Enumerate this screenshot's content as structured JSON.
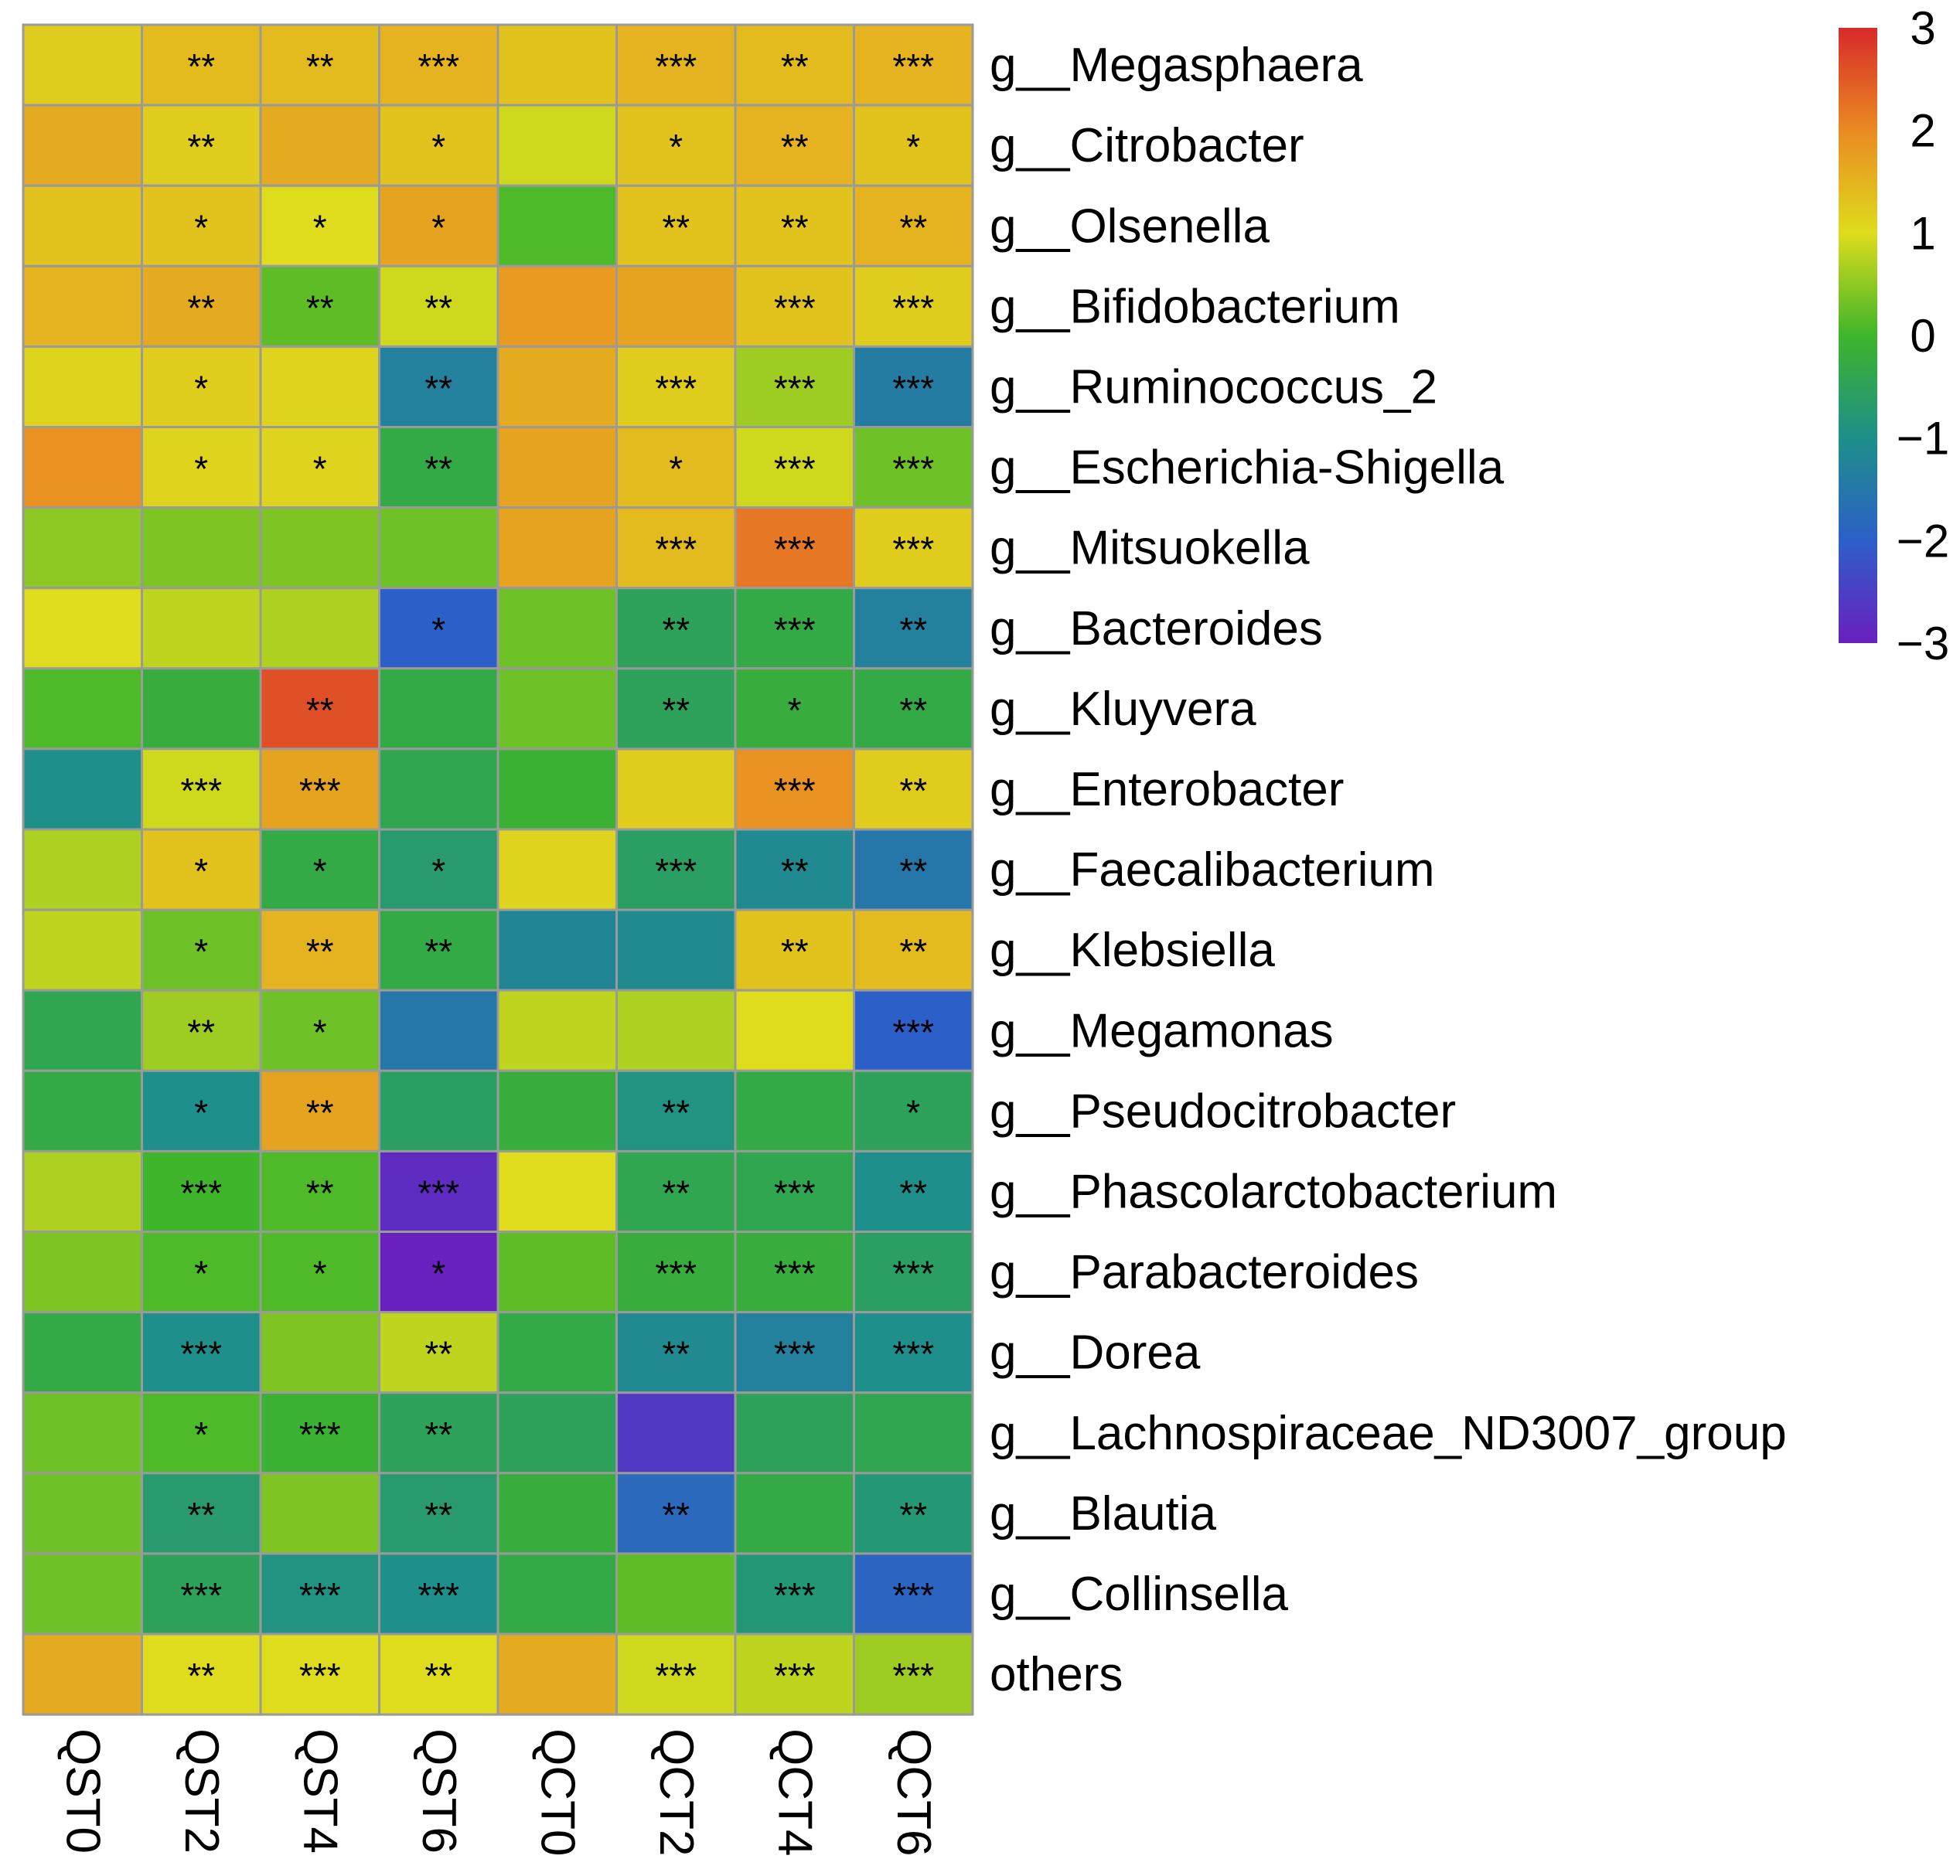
{
  "chart_data": {
    "type": "heatmap",
    "title": "",
    "columns": [
      "QST0",
      "QST2",
      "QST4",
      "QST6",
      "QCT0",
      "QCT2",
      "QCT4",
      "QCT6"
    ],
    "rows": [
      "g__Megasphaera",
      "g__Citrobacter",
      "g__Olsenella",
      "g__Bifidobacterium",
      "g__Ruminococcus_2",
      "g__Escherichia-Shigella",
      "g__Mitsuokella",
      "g__Bacteroides",
      "g__Kluyvera",
      "g__Enterobacter",
      "g__Faecalibacterium",
      "g__Klebsiella",
      "g__Megamonas",
      "g__Pseudocitrobacter",
      "g__Phascolarctobacterium",
      "g__Parabacteroides",
      "g__Dorea",
      "g__Lachnospiraceae_ND3007_group",
      "g__Blautia",
      "g__Collinsella",
      "others"
    ],
    "values": [
      [
        1.2,
        1.4,
        1.4,
        1.5,
        1.3,
        1.5,
        1.4,
        1.5
      ],
      [
        1.6,
        1.2,
        1.6,
        1.3,
        0.9,
        1.3,
        1.5,
        1.3
      ],
      [
        1.3,
        1.3,
        1.0,
        1.7,
        0.1,
        1.3,
        1.3,
        1.5
      ],
      [
        1.5,
        1.6,
        0.2,
        0.9,
        1.8,
        1.7,
        1.3,
        1.2
      ],
      [
        1.1,
        1.2,
        1.1,
        -1.3,
        1.6,
        1.2,
        0.6,
        -1.4
      ],
      [
        1.9,
        1.1,
        1.1,
        -0.3,
        1.7,
        1.4,
        0.9,
        0.3
      ],
      [
        0.5,
        0.4,
        0.4,
        0.3,
        1.7,
        1.4,
        2.2,
        1.2
      ],
      [
        1.0,
        0.8,
        0.7,
        -2.0,
        0.3,
        -0.5,
        -0.3,
        -1.3
      ],
      [
        0.1,
        -0.2,
        2.6,
        -0.3,
        0.3,
        -0.5,
        -0.2,
        -0.3
      ],
      [
        -1.0,
        0.9,
        1.7,
        -0.4,
        -0.1,
        1.2,
        1.9,
        1.2
      ],
      [
        0.7,
        1.3,
        -0.3,
        -0.7,
        1.1,
        -0.6,
        -1.1,
        -1.5
      ],
      [
        0.8,
        0.3,
        1.5,
        -0.3,
        -1.2,
        -1.1,
        1.3,
        1.4
      ],
      [
        -0.4,
        0.6,
        0.3,
        -1.5,
        0.8,
        0.7,
        1.0,
        -2.0
      ],
      [
        -0.3,
        -1.0,
        1.7,
        -0.6,
        -0.2,
        -0.9,
        -0.3,
        -0.5
      ],
      [
        0.7,
        0.0,
        0.1,
        -2.8,
        1.0,
        -0.4,
        -0.4,
        -1.0
      ],
      [
        0.4,
        0.1,
        0.1,
        -3.0,
        0.2,
        -0.2,
        -0.2,
        -0.6
      ],
      [
        -0.3,
        -1.0,
        0.4,
        0.8,
        -0.3,
        -1.1,
        -1.3,
        -1.0
      ],
      [
        0.3,
        0.1,
        -0.1,
        -0.5,
        -0.5,
        -2.6,
        -0.5,
        -0.4
      ],
      [
        0.3,
        -0.7,
        0.4,
        -0.7,
        -0.2,
        -1.8,
        -0.3,
        -0.8
      ],
      [
        0.3,
        -0.5,
        -0.9,
        -1.0,
        -0.3,
        0.2,
        -0.8,
        -1.9
      ],
      [
        1.6,
        1.0,
        1.0,
        1.0,
        1.6,
        0.9,
        0.8,
        0.6
      ]
    ],
    "significance": [
      [
        "",
        "**",
        "**",
        "***",
        "",
        "***",
        "**",
        "***"
      ],
      [
        "",
        "**",
        "",
        "*",
        "",
        "*",
        "**",
        "*"
      ],
      [
        "",
        "*",
        "*",
        "*",
        "",
        "**",
        "**",
        "**"
      ],
      [
        "",
        "**",
        "**",
        "**",
        "",
        "",
        "***",
        "***"
      ],
      [
        "",
        "*",
        "",
        "**",
        "",
        "***",
        "***",
        "***"
      ],
      [
        "",
        "*",
        "*",
        "**",
        "",
        "*",
        "***",
        "***"
      ],
      [
        "",
        "",
        "",
        "",
        "",
        "***",
        "***",
        "***"
      ],
      [
        "",
        "",
        "",
        "*",
        "",
        "**",
        "***",
        "**"
      ],
      [
        "",
        "",
        "**",
        "",
        "",
        "**",
        "*",
        "**"
      ],
      [
        "",
        "***",
        "***",
        "",
        "",
        "",
        "***",
        "**"
      ],
      [
        "",
        "*",
        "*",
        "*",
        "",
        "***",
        "**",
        "**"
      ],
      [
        "",
        "*",
        "**",
        "**",
        "",
        "",
        "**",
        "**"
      ],
      [
        "",
        "**",
        "*",
        "",
        "",
        "",
        "",
        "***"
      ],
      [
        "",
        "*",
        "**",
        "",
        "",
        "**",
        "",
        "*"
      ],
      [
        "",
        "***",
        "**",
        "***",
        "",
        "**",
        "***",
        "**"
      ],
      [
        "",
        "*",
        "*",
        "*",
        "",
        "***",
        "***",
        "***"
      ],
      [
        "",
        "***",
        "",
        "**",
        "",
        "**",
        "***",
        "***"
      ],
      [
        "",
        "*",
        "***",
        "**",
        "",
        "",
        "",
        ""
      ],
      [
        "",
        "**",
        "",
        "**",
        "",
        "**",
        "",
        "**"
      ],
      [
        "",
        "***",
        "***",
        "***",
        "",
        "",
        "***",
        "***"
      ],
      [
        "",
        "**",
        "***",
        "**",
        "",
        "***",
        "***",
        "***"
      ]
    ],
    "color_scale": {
      "range": [
        -3,
        3
      ],
      "ticks": [
        "3",
        "2",
        "1",
        "0",
        "−1",
        "−2",
        "−3"
      ],
      "tick_values": [
        3,
        2,
        1,
        0,
        -1,
        -2,
        -3
      ],
      "stops": [
        {
          "value": -3,
          "color": "#6a1fbf"
        },
        {
          "value": -2,
          "color": "#2d5fc8"
        },
        {
          "value": -1,
          "color": "#1e8f8a"
        },
        {
          "value": 0,
          "color": "#3eb52a"
        },
        {
          "value": 1,
          "color": "#dedc1c"
        },
        {
          "value": 2,
          "color": "#ea8a22"
        },
        {
          "value": 3,
          "color": "#d82a2a"
        }
      ]
    },
    "grid_color": "#9a9a9a",
    "legend": "top-right"
  }
}
